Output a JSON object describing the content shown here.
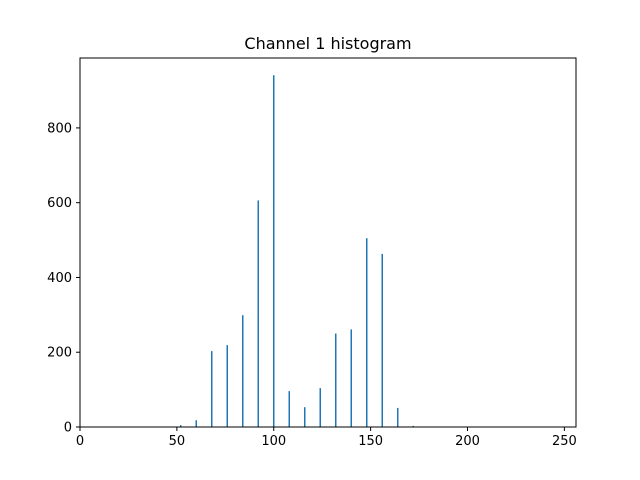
{
  "chart_data": {
    "type": "bar",
    "title": "Channel 1 histogram",
    "xlabel": "",
    "ylabel": "",
    "xlim": [
      0,
      256
    ],
    "ylim": [
      0,
      987
    ],
    "x_ticks": [
      {
        "value": 0,
        "label": "0"
      },
      {
        "value": 50,
        "label": "50"
      },
      {
        "value": 100,
        "label": "100"
      },
      {
        "value": 150,
        "label": "150"
      },
      {
        "value": 200,
        "label": "200"
      },
      {
        "value": 250,
        "label": "250"
      }
    ],
    "y_ticks": [
      {
        "value": 0,
        "label": "0"
      },
      {
        "value": 200,
        "label": "200"
      },
      {
        "value": 400,
        "label": "400"
      },
      {
        "value": 600,
        "label": "600"
      },
      {
        "value": 800,
        "label": "800"
      }
    ],
    "grid": false,
    "bar_color": "#1f77b4",
    "bins": [
      {
        "x": 52,
        "value": 5
      },
      {
        "x": 60,
        "value": 18
      },
      {
        "x": 68,
        "value": 203
      },
      {
        "x": 76,
        "value": 219
      },
      {
        "x": 84,
        "value": 299
      },
      {
        "x": 92,
        "value": 606
      },
      {
        "x": 100,
        "value": 941
      },
      {
        "x": 108,
        "value": 96
      },
      {
        "x": 116,
        "value": 53
      },
      {
        "x": 124,
        "value": 104
      },
      {
        "x": 132,
        "value": 250
      },
      {
        "x": 140,
        "value": 261
      },
      {
        "x": 148,
        "value": 505
      },
      {
        "x": 156,
        "value": 463
      },
      {
        "x": 164,
        "value": 51
      },
      {
        "x": 172,
        "value": 3
      }
    ]
  }
}
